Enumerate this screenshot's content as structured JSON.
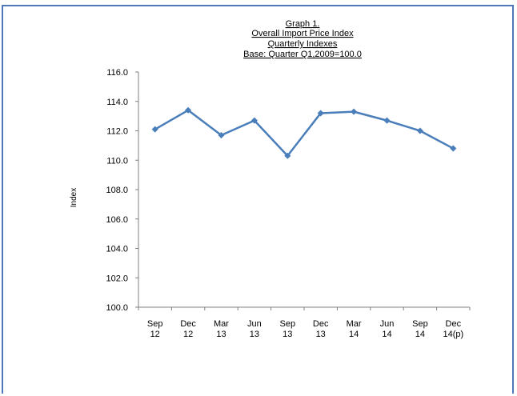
{
  "chart_data": {
    "type": "line",
    "title_lines": [
      "Graph 1.",
      "Overall Import Price Index",
      "Quarterly Indexes",
      "Base: Quarter Q1,2009=100.0"
    ],
    "xlabel": "",
    "ylabel": "Index",
    "categories": [
      [
        "Sep",
        "12"
      ],
      [
        "Dec",
        "12"
      ],
      [
        "Mar",
        "13"
      ],
      [
        "Jun",
        "13"
      ],
      [
        "Sep",
        "13"
      ],
      [
        "Dec",
        "13"
      ],
      [
        "Mar",
        "14"
      ],
      [
        "Jun",
        "14"
      ],
      [
        "Sep",
        "14"
      ],
      [
        "Dec",
        "14(p)"
      ]
    ],
    "values": [
      112.1,
      113.4,
      111.7,
      112.7,
      110.3,
      113.2,
      113.3,
      112.7,
      112.0,
      110.8
    ],
    "ylim": [
      100.0,
      116.0
    ],
    "yticks": [
      "100.0",
      "102.0",
      "104.0",
      "106.0",
      "108.0",
      "110.0",
      "112.0",
      "114.0",
      "116.0"
    ],
    "grid": false,
    "legend": "none",
    "line_color": "#4a7ebb"
  },
  "colors": {
    "frame_border": "#4f78b8",
    "axis": "#808080"
  }
}
